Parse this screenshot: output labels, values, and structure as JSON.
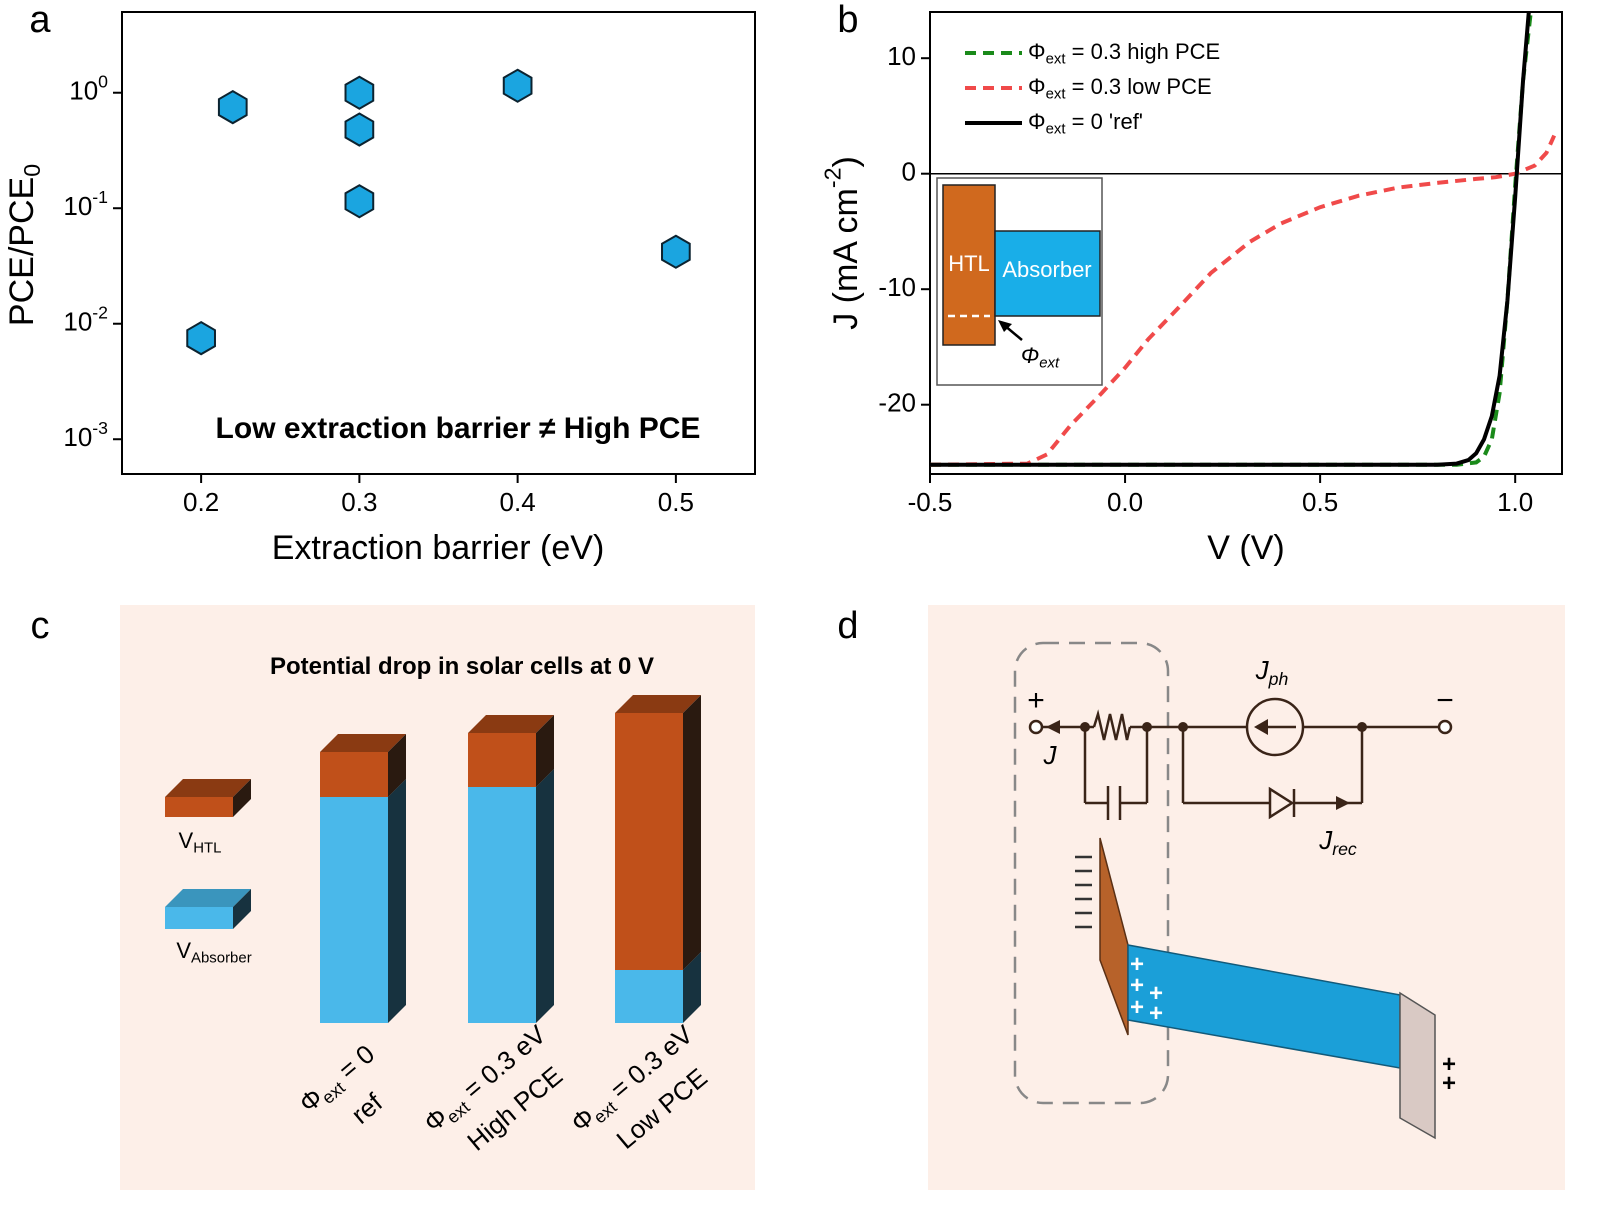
{
  "panel_labels": [
    "a",
    "b",
    "c",
    "d"
  ],
  "chart_data": [
    {
      "type": "scatter",
      "log_y": true,
      "x": [
        0.2,
        0.22,
        0.3,
        0.3,
        0.3,
        0.4,
        0.5
      ],
      "values": [
        0.0075,
        0.75,
        1.0,
        0.48,
        0.115,
        1.15,
        0.042
      ],
      "color": "#1ba5e0",
      "marker": "hexagon",
      "xlim": [
        0.15,
        0.55
      ],
      "xticks": [
        0.2,
        0.3,
        0.4,
        0.5
      ],
      "ylim": [
        0.0005,
        5
      ],
      "yticks": [
        {
          "value": 0.001,
          "label": "10^{-3}"
        },
        {
          "value": 0.01,
          "label": "10^{-2}"
        },
        {
          "value": 0.1,
          "label": "10^{-1}"
        },
        {
          "value": 1,
          "label": "10^{0}"
        }
      ],
      "xlabel": "Extraction barrier (eV)",
      "ylabel": "PCE/PCE_{0}",
      "annotation": "Low extraction barrier ≠ High PCE"
    },
    {
      "type": "line",
      "xlim": [
        -0.5,
        1.12
      ],
      "xticks": [
        -0.5,
        {
          "value": 0,
          "label": "0.0"
        },
        0.5,
        {
          "value": 1,
          "label": "1.0"
        }
      ],
      "ylim": [
        -26,
        14
      ],
      "yticks": [
        -20,
        -10,
        0,
        10
      ],
      "xlabel": "V (V)",
      "ylabel": "J (mA cm^{-2})",
      "legend": "upper left",
      "series": [
        {
          "name": "Φ_{ext} = 0.3 high PCE",
          "color": "#1a8a1a",
          "dashed": true,
          "x": [
            -0.5,
            0.85,
            0.9,
            0.92,
            0.94,
            0.96,
            0.98,
            1.0,
            1.02,
            1.04
          ],
          "values": [
            -25.2,
            -25.2,
            -25,
            -24.5,
            -23,
            -19,
            -11,
            -1,
            8,
            14
          ]
        },
        {
          "name": "Φ_{ext} = 0.3 low PCE",
          "color": "#f04a4a",
          "dashed": true,
          "x": [
            -0.5,
            -0.25,
            -0.2,
            -0.14,
            -0.06,
            0,
            0.06,
            0.14,
            0.22,
            0.32,
            0.4,
            0.5,
            0.6,
            0.7,
            0.8,
            0.9,
            0.95,
            1.0,
            1.05,
            1.08,
            1.1
          ],
          "values": [
            -25.2,
            -25.1,
            -24.3,
            -21.8,
            -19,
            -16.8,
            -14.3,
            -11.5,
            -8.6,
            -5.9,
            -4.3,
            -2.9,
            -1.9,
            -1.2,
            -0.8,
            -0.45,
            -0.3,
            0,
            0.7,
            1.8,
            3.3
          ]
        },
        {
          "name": "Φ_{ext} = 0 'ref'",
          "color": "#000000",
          "dashed": false,
          "x": [
            -0.5,
            0.8,
            0.85,
            0.88,
            0.9,
            0.92,
            0.94,
            0.96,
            0.98,
            1.0,
            1.02,
            1.035
          ],
          "values": [
            -25.2,
            -25.2,
            -25.1,
            -24.8,
            -24.2,
            -23,
            -21,
            -17.5,
            -11,
            -2,
            8,
            14
          ]
        }
      ],
      "inset": {
        "htl": "HTL",
        "absorber": "Absorber",
        "phi": "Φ_{ext}"
      }
    }
  ],
  "panel_c": {
    "title": "Potential drop in solar cells at 0 V",
    "legend": [
      "V_{HTL}",
      "V_{Absorber}"
    ],
    "bar_labels": [
      [
        "Φ_{ext} = 0",
        "ref"
      ],
      [
        "Φ_{ext} = 0.3 eV",
        "High PCE"
      ],
      [
        "Φ_{ext} = 0.3 eV",
        "Low PCE"
      ]
    ]
  },
  "panel_d": {
    "plus": "+",
    "minus": "−",
    "current": "J",
    "photocurrent": "J_{ph}",
    "recombination": "J_{rec}",
    "absorber_charges": [
      "+",
      "+",
      "+",
      "+",
      "+"
    ],
    "contact_charges": [
      "+",
      "+"
    ]
  }
}
